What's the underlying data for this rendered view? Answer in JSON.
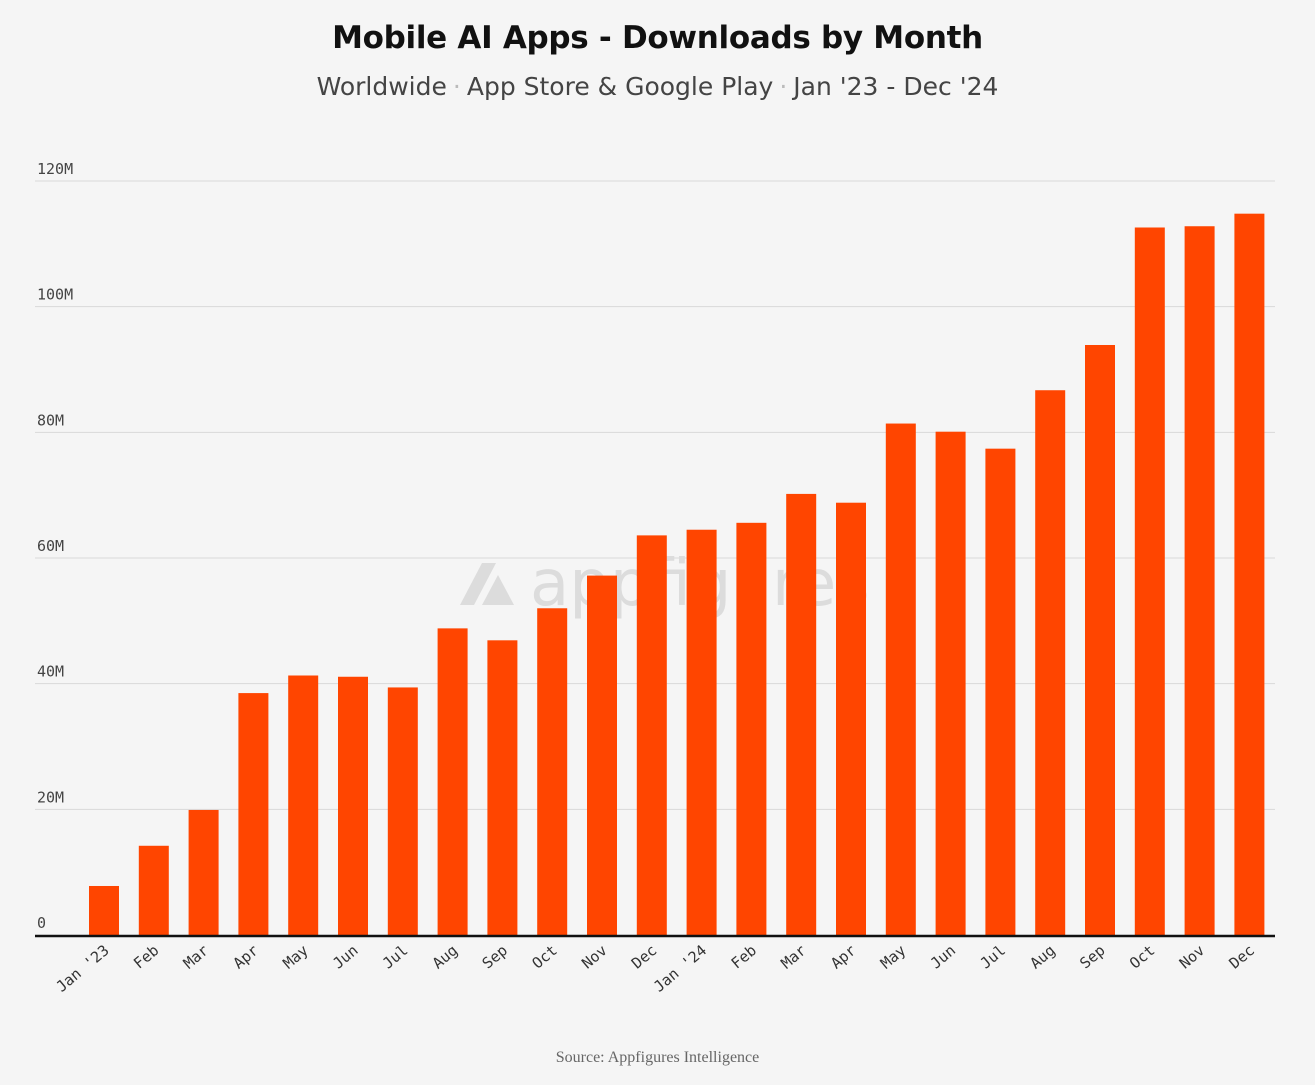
{
  "header": {
    "title": "Mobile AI Apps - Downloads by Month",
    "subtitle_parts": [
      "Worldwide",
      "App Store & Google Play",
      "Jan '23 - Dec '24"
    ],
    "separator": "·"
  },
  "watermark": {
    "text": "appfigures"
  },
  "footer": {
    "source": "Source: Appfigures Intelligence"
  },
  "colors": {
    "bar": "#ff4500",
    "grid": "#d9d9d9",
    "axis": "#111111"
  },
  "chart_data": {
    "type": "bar",
    "title": "Mobile AI Apps - Downloads by Month",
    "subtitle": "Worldwide · App Store & Google Play · Jan '23 - Dec '24",
    "categories": [
      "Jan '23",
      "Feb",
      "Mar",
      "Apr",
      "May",
      "Jun",
      "Jul",
      "Aug",
      "Sep",
      "Oct",
      "Nov",
      "Dec",
      "Jan '24",
      "Feb",
      "Mar",
      "Apr",
      "May",
      "Jun",
      "Jul",
      "Aug",
      "Sep",
      "Oct",
      "Nov",
      "Dec"
    ],
    "values": [
      7.8,
      14.2,
      19.9,
      38.5,
      41.3,
      41.1,
      39.4,
      48.8,
      46.9,
      52.0,
      57.2,
      63.6,
      64.5,
      65.6,
      70.2,
      68.8,
      81.4,
      80.1,
      77.4,
      86.7,
      93.9,
      112.6,
      112.8,
      114.8
    ],
    "units": "M",
    "ylim": [
      0,
      120
    ],
    "yticks": [
      0,
      20,
      40,
      60,
      80,
      100,
      120
    ],
    "ytick_labels": [
      "0",
      "20M",
      "40M",
      "60M",
      "80M",
      "100M",
      "120M"
    ],
    "grid": true,
    "xlabel": "",
    "ylabel": ""
  }
}
